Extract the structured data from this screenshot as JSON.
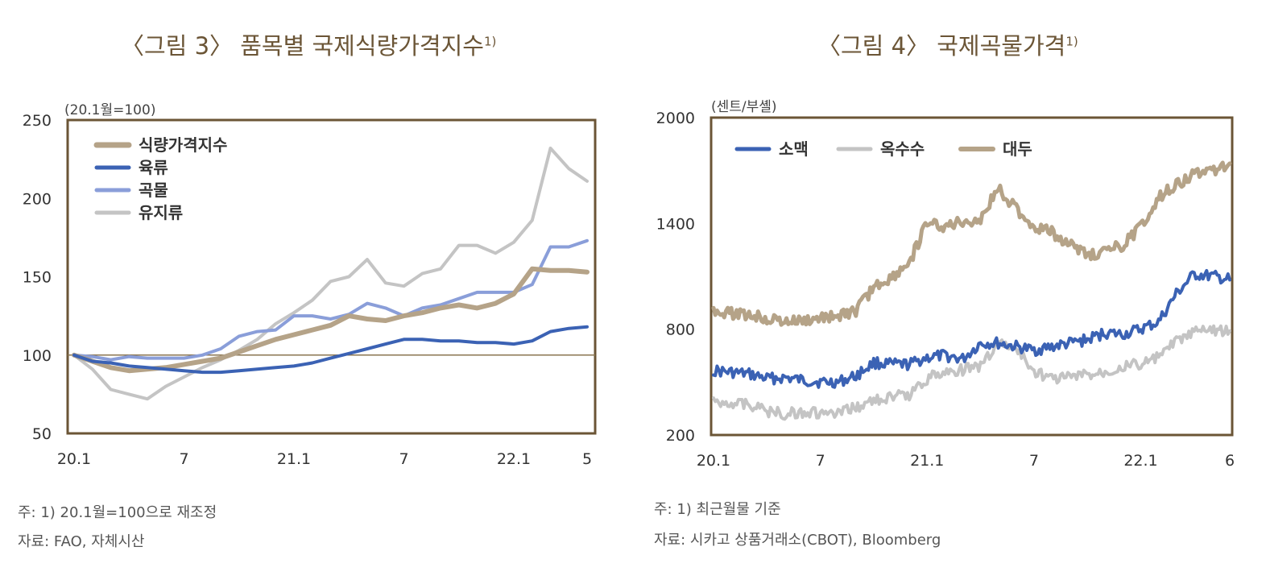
{
  "left": {
    "title": "〈그림 3〉 품목별 국제식량가격지수",
    "title_sup": "1)",
    "unit": "(20.1월=100)",
    "note1": "주: 1) 20.1월=100으로 재조정",
    "note2": "자료: FAO, 자체시산"
  },
  "right": {
    "title": "〈그림 4〉 국제곡물가격",
    "title_sup": "1)",
    "unit": "(센트/부셸)",
    "note1": "주: 1) 최근월물 기준",
    "note2": "자료: 시카고 상품거래소(CBOT), Bloomberg"
  },
  "chart_data": [
    {
      "type": "line",
      "title": "〈그림 3〉 품목별 국제식량가격지수",
      "ylabel": "(20.1월=100)",
      "ylim": [
        50,
        250
      ],
      "yticks": [
        250,
        200,
        150,
        100,
        50
      ],
      "x_tick_labels": [
        {
          "index": 0,
          "label": "20.1"
        },
        {
          "index": 6,
          "label": "7"
        },
        {
          "index": 12,
          "label": "21.1"
        },
        {
          "index": 18,
          "label": "7"
        },
        {
          "index": 24,
          "label": "22.1"
        },
        {
          "index": 28,
          "label": "5"
        }
      ],
      "x": [
        "20.1",
        "20.2",
        "20.3",
        "20.4",
        "20.5",
        "20.6",
        "20.7",
        "20.8",
        "20.9",
        "20.10",
        "20.11",
        "20.12",
        "21.1",
        "21.2",
        "21.3",
        "21.4",
        "21.5",
        "21.6",
        "21.7",
        "21.8",
        "21.9",
        "21.10",
        "21.11",
        "21.12",
        "22.1",
        "22.2",
        "22.3",
        "22.4",
        "22.5"
      ],
      "reference_line": 100,
      "legend_position": "top-left",
      "series": [
        {
          "name": "식량가격지수",
          "color": "#b5a388",
          "width": 6,
          "values": [
            100,
            96,
            92,
            90,
            91,
            92,
            94,
            96,
            98,
            102,
            106,
            110,
            113,
            116,
            119,
            125,
            123,
            122,
            125,
            127,
            130,
            132,
            130,
            133,
            139,
            155,
            154,
            154,
            153
          ]
        },
        {
          "name": "육류",
          "color": "#3b62b4",
          "width": 4,
          "values": [
            100,
            96,
            95,
            93,
            92,
            91,
            90,
            89,
            89,
            90,
            91,
            92,
            93,
            95,
            98,
            101,
            104,
            107,
            110,
            110,
            109,
            109,
            108,
            108,
            107,
            109,
            115,
            117,
            118
          ]
        },
        {
          "name": "곡물",
          "color": "#8a9ed9",
          "width": 4,
          "values": [
            100,
            99,
            97,
            99,
            98,
            98,
            98,
            100,
            104,
            112,
            115,
            116,
            125,
            125,
            123,
            126,
            133,
            130,
            125,
            130,
            132,
            136,
            140,
            140,
            140,
            145,
            169,
            169,
            173
          ]
        },
        {
          "name": "유지류",
          "color": "#c4c4c4",
          "width": 4,
          "values": [
            100,
            91,
            78,
            75,
            72,
            80,
            86,
            92,
            97,
            103,
            110,
            120,
            127,
            135,
            147,
            150,
            161,
            146,
            144,
            152,
            155,
            170,
            170,
            165,
            172,
            186,
            232,
            219,
            211
          ]
        }
      ]
    },
    {
      "type": "line",
      "title": "〈그림 4〉 국제곡물가격",
      "ylabel": "(센트/부셸)",
      "ylim": [
        200,
        2000
      ],
      "yticks": [
        2000,
        1400,
        800,
        200
      ],
      "x_tick_labels": [
        {
          "index": 0,
          "label": "20.1"
        },
        {
          "index": 6,
          "label": "7"
        },
        {
          "index": 12,
          "label": "21.1"
        },
        {
          "index": 18,
          "label": "7"
        },
        {
          "index": 24,
          "label": "22.1"
        },
        {
          "index": 29,
          "label": "6"
        }
      ],
      "x": [
        "20.1",
        "20.2",
        "20.3",
        "20.4",
        "20.5",
        "20.6",
        "20.7",
        "20.8",
        "20.9",
        "20.10",
        "20.11",
        "20.12",
        "21.1",
        "21.2",
        "21.3",
        "21.4",
        "21.5",
        "21.6",
        "21.7",
        "21.8",
        "21.9",
        "21.10",
        "21.11",
        "21.12",
        "22.1",
        "22.2",
        "22.3",
        "22.4",
        "22.5",
        "22.6"
      ],
      "legend_position": "top-left",
      "series": [
        {
          "name": "소맥",
          "color": "#3b62b4",
          "width": 4,
          "values": [
            565,
            555,
            545,
            520,
            525,
            510,
            500,
            500,
            535,
            610,
            600,
            600,
            640,
            650,
            630,
            720,
            720,
            700,
            680,
            700,
            720,
            740,
            780,
            770,
            800,
            840,
            1000,
            1110,
            1100,
            1080
          ]
        },
        {
          "name": "옥수수",
          "color": "#c4c4c4",
          "width": 4,
          "values": [
            385,
            385,
            375,
            335,
            320,
            330,
            320,
            315,
            360,
            395,
            415,
            430,
            520,
            560,
            570,
            590,
            720,
            690,
            560,
            520,
            530,
            540,
            560,
            590,
            600,
            640,
            730,
            780,
            800,
            790
          ]
        },
        {
          "name": "대두",
          "color": "#b5a388",
          "width": 5,
          "values": [
            910,
            890,
            880,
            860,
            840,
            845,
            860,
            880,
            900,
            1040,
            1090,
            1180,
            1400,
            1380,
            1410,
            1420,
            1600,
            1480,
            1380,
            1350,
            1280,
            1220,
            1240,
            1280,
            1380,
            1550,
            1620,
            1680,
            1700,
            1740
          ]
        }
      ]
    }
  ]
}
